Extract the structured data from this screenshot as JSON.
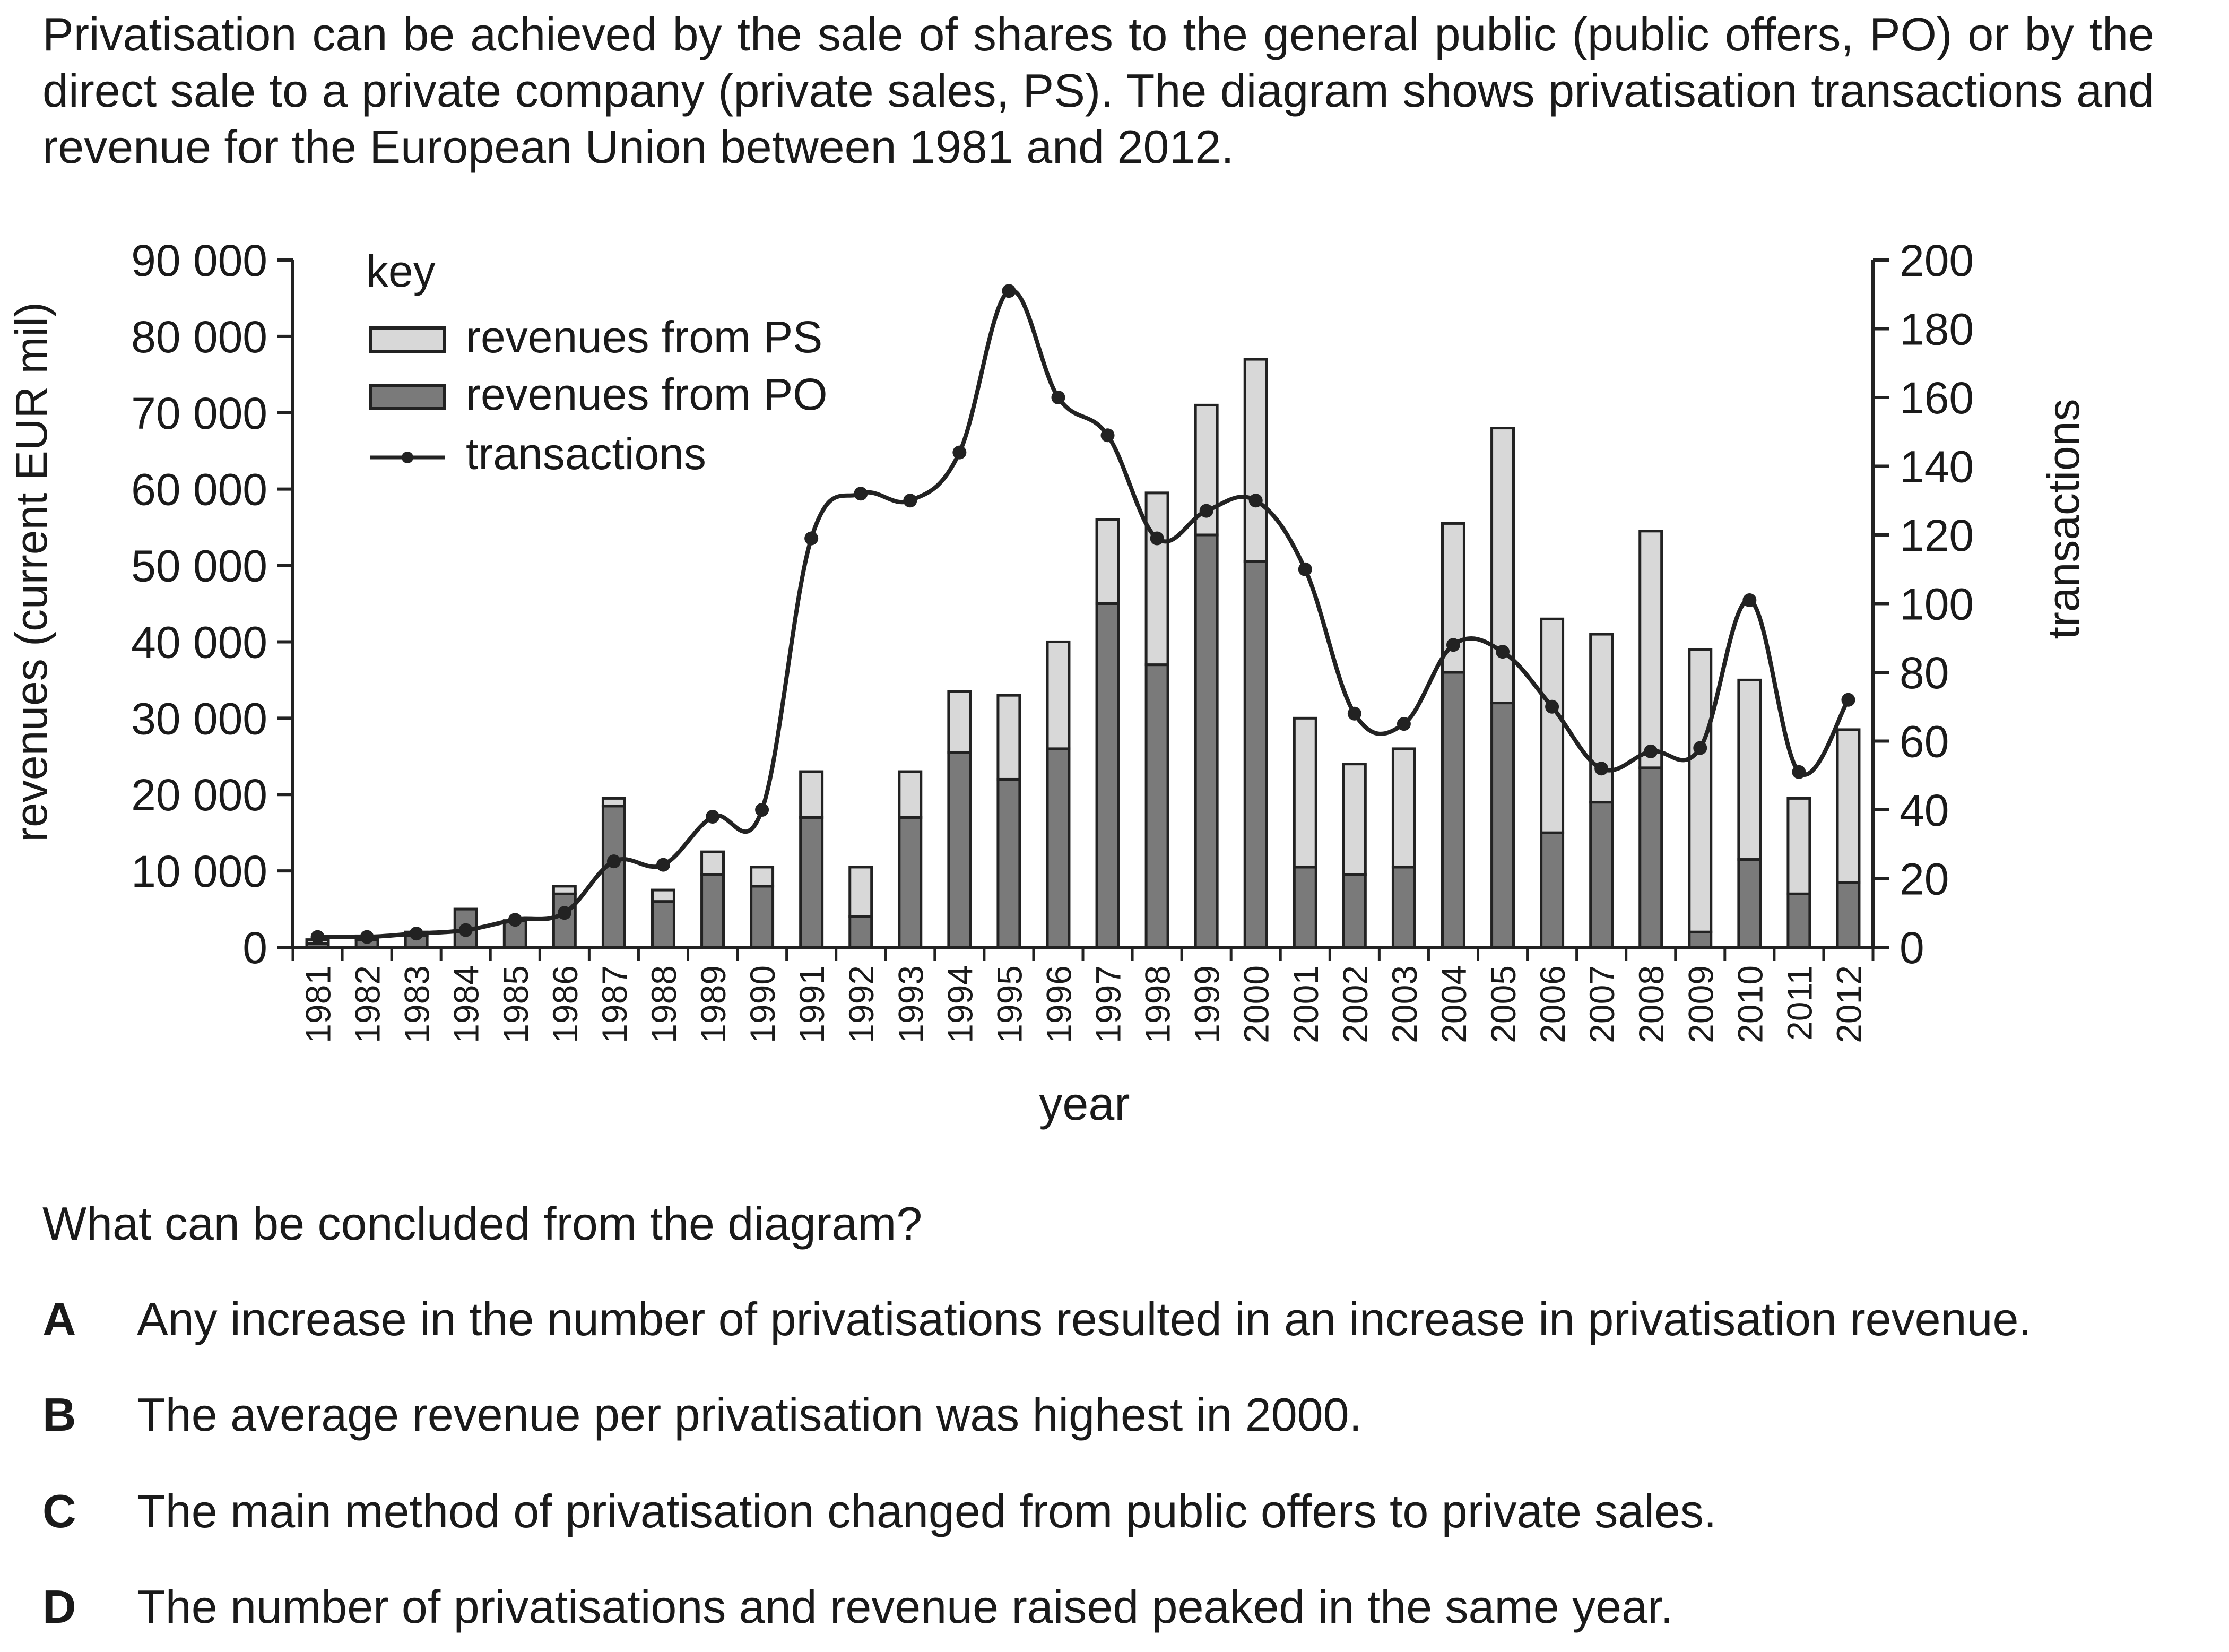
{
  "intro": "Privatisation can be achieved by the sale of shares to the general public (public offers, PO) or by the direct sale to a private company (private sales, PS). The diagram shows privatisation transactions and revenue for the European Union between 1981 and 2012.",
  "question": "What can be concluded from the diagram?",
  "options": [
    {
      "letter": "A",
      "text": "Any increase in the number of privatisations resulted in an increase in privatisation revenue."
    },
    {
      "letter": "B",
      "text": "The average revenue per privatisation was highest in 2000."
    },
    {
      "letter": "C",
      "text": "The main method of privatisation changed from public offers to private sales."
    },
    {
      "letter": "D",
      "text": "The number of privatisations and revenue raised peaked in the same year."
    }
  ],
  "chart_data": {
    "type": "bar",
    "stacked": true,
    "xlabel": "year",
    "ylabel": "revenues (current EUR mil)",
    "y2label": "transactions",
    "ylim": [
      0,
      90000
    ],
    "y2lim": [
      0,
      200
    ],
    "yticks": [
      "0",
      "10 000",
      "20 000",
      "30 000",
      "40 000",
      "50 000",
      "60 000",
      "70 000",
      "80 000",
      "90 000"
    ],
    "y2ticks": [
      "0",
      "20",
      "40",
      "60",
      "80",
      "100",
      "120",
      "140",
      "160",
      "180",
      "200"
    ],
    "legend_title": "key",
    "legend_position": "top-left",
    "categories": [
      "1981",
      "1982",
      "1983",
      "1984",
      "1985",
      "1986",
      "1987",
      "1988",
      "1989",
      "1990",
      "1991",
      "1992",
      "1993",
      "1994",
      "1995",
      "1996",
      "1997",
      "1998",
      "1999",
      "2000",
      "2001",
      "2002",
      "2003",
      "2004",
      "2005",
      "2006",
      "2007",
      "2008",
      "2009",
      "2010",
      "2011",
      "2012"
    ],
    "series": [
      {
        "name": "revenues from PO",
        "color": "#7a7a7a",
        "axis": "left",
        "values": [
          500,
          1000,
          1500,
          5000,
          3500,
          7000,
          18500,
          6000,
          9500,
          8000,
          17000,
          4000,
          17000,
          25500,
          22000,
          26000,
          45000,
          37000,
          54000,
          50500,
          10500,
          9500,
          10500,
          36000,
          32000,
          15000,
          19000,
          23500,
          2000,
          11500,
          7000,
          8500
        ]
      },
      {
        "name": "revenues from PS",
        "color": "#d8d8d8",
        "axis": "left",
        "values": [
          500,
          500,
          500,
          0,
          0,
          1000,
          1000,
          1500,
          3000,
          2500,
          6000,
          6500,
          6000,
          8000,
          11000,
          14000,
          11000,
          22500,
          17000,
          26500,
          19500,
          14500,
          15500,
          19500,
          36000,
          28000,
          22000,
          31000,
          37000,
          23500,
          12500,
          20000
        ]
      },
      {
        "name": "transactions",
        "color": "#222222",
        "axis": "right",
        "values": [
          3,
          3,
          4,
          5,
          8,
          10,
          25,
          24,
          38,
          40,
          119,
          132,
          130,
          144,
          191,
          160,
          149,
          119,
          127,
          130,
          110,
          68,
          65,
          88,
          86,
          70,
          52,
          57,
          58,
          101,
          51,
          72
        ]
      }
    ]
  }
}
